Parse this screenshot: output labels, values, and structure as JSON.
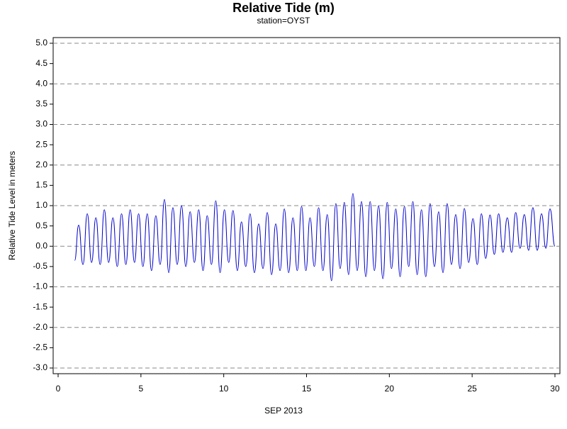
{
  "chart_data": {
    "type": "line",
    "title": "Relative Tide (m)",
    "subtitle": "station=OYST",
    "xlabel": "SEP 2013",
    "ylabel": "Relative Tide Level in meters",
    "xlim": [
      -0.3,
      30.3
    ],
    "xticks": [
      0,
      5,
      10,
      15,
      20,
      25,
      30
    ],
    "ylim": [
      -3.14,
      5.14
    ],
    "yticks": [
      {
        "value": 5,
        "label": "5.0"
      },
      4.5,
      {
        "value": 4,
        "label": "4.0"
      },
      3.5,
      {
        "value": 3,
        "label": "3.0"
      },
      2.5,
      {
        "value": 2,
        "label": "2.0"
      },
      1.5,
      {
        "value": 1,
        "label": "1.0"
      },
      0.5,
      {
        "value": 0,
        "label": "0.0"
      },
      -0.5,
      {
        "value": -1,
        "label": "-1.0"
      },
      -1.5,
      {
        "value": -2,
        "label": "-2.0"
      },
      -2.5,
      {
        "value": -3,
        "label": "-3.0"
      }
    ],
    "grid": true,
    "x": [
      1.0,
      1.24,
      1.5,
      1.76,
      2.02,
      2.28,
      2.54,
      2.79,
      3.05,
      3.31,
      3.57,
      3.83,
      4.09,
      4.35,
      4.61,
      4.86,
      5.12,
      5.38,
      5.64,
      5.9,
      6.16,
      6.42,
      6.68,
      6.93,
      7.19,
      7.45,
      7.71,
      7.97,
      8.23,
      8.49,
      8.75,
      9.0,
      9.26,
      9.52,
      9.78,
      10.04,
      10.3,
      10.56,
      10.82,
      11.07,
      11.33,
      11.59,
      11.85,
      12.11,
      12.37,
      12.63,
      12.89,
      13.14,
      13.4,
      13.66,
      13.92,
      14.18,
      14.44,
      14.7,
      14.96,
      15.21,
      15.47,
      15.73,
      15.99,
      16.25,
      16.51,
      16.77,
      17.03,
      17.28,
      17.54,
      17.8,
      18.06,
      18.32,
      18.58,
      18.84,
      19.1,
      19.35,
      19.61,
      19.87,
      20.13,
      20.39,
      20.65,
      20.91,
      21.17,
      21.42,
      21.68,
      21.94,
      22.2,
      22.46,
      22.72,
      22.98,
      23.24,
      23.49,
      23.75,
      24.01,
      24.27,
      24.53,
      24.79,
      25.05,
      25.31,
      25.56,
      25.82,
      26.08,
      26.34,
      26.6,
      26.86,
      27.12,
      27.38,
      27.63,
      27.89,
      28.15,
      28.41,
      28.67,
      28.93,
      29.19,
      29.45,
      29.7,
      30.0
    ],
    "series": [
      {
        "color": "#0000cc",
        "values": [
          -0.35,
          0.52,
          -0.45,
          0.8,
          -0.4,
          0.7,
          -0.45,
          0.9,
          -0.4,
          0.7,
          -0.5,
          0.8,
          -0.45,
          0.9,
          -0.4,
          0.8,
          -0.5,
          0.8,
          -0.6,
          0.75,
          -0.45,
          1.15,
          -0.65,
          0.95,
          -0.45,
          1.0,
          -0.5,
          0.85,
          -0.4,
          0.9,
          -0.6,
          0.75,
          -0.45,
          1.12,
          -0.65,
          0.9,
          -0.4,
          0.88,
          -0.6,
          0.6,
          -0.5,
          0.8,
          -0.65,
          0.55,
          -0.55,
          0.83,
          -0.7,
          0.55,
          -0.6,
          0.92,
          -0.65,
          0.7,
          -0.6,
          0.98,
          -0.6,
          0.7,
          -0.5,
          0.95,
          -0.6,
          0.78,
          -0.85,
          1.05,
          -0.55,
          1.08,
          -0.7,
          1.3,
          -0.6,
          1.1,
          -0.75,
          1.1,
          -0.6,
          1.0,
          -0.8,
          1.08,
          -0.55,
          0.92,
          -0.75,
          0.98,
          -0.5,
          1.1,
          -0.7,
          0.9,
          -0.75,
          1.05,
          -0.5,
          0.85,
          -0.65,
          1.05,
          -0.45,
          0.78,
          -0.55,
          0.93,
          -0.4,
          0.68,
          -0.45,
          0.8,
          -0.3,
          0.77,
          -0.2,
          0.8,
          -0.15,
          0.7,
          -0.15,
          0.83,
          -0.05,
          0.78,
          -0.1,
          0.95,
          -0.1,
          0.8,
          -0.05,
          0.92,
          0.0
        ]
      }
    ]
  }
}
